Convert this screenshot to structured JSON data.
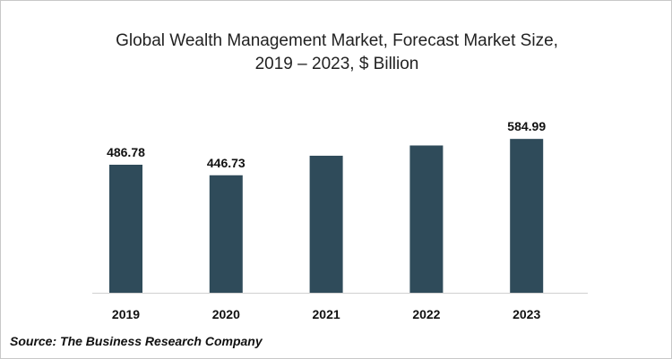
{
  "chart_data": {
    "type": "bar",
    "title_line1": "Global Wealth Management Market, Forecast Market Size,",
    "title_line2": "2019 – 2023, $ Billion",
    "categories": [
      "2019",
      "2020",
      "2021",
      "2022",
      "2023"
    ],
    "values": [
      486.78,
      446.73,
      521,
      560,
      584.99
    ],
    "data_labels": [
      "486.78",
      "446.73",
      "",
      "",
      "584.99"
    ],
    "xlabel": "",
    "ylabel": "",
    "ylim": [
      0,
      640
    ],
    "grid": false,
    "bar_color": "#2F4B5A"
  },
  "source": "Source: The Business Research Company"
}
